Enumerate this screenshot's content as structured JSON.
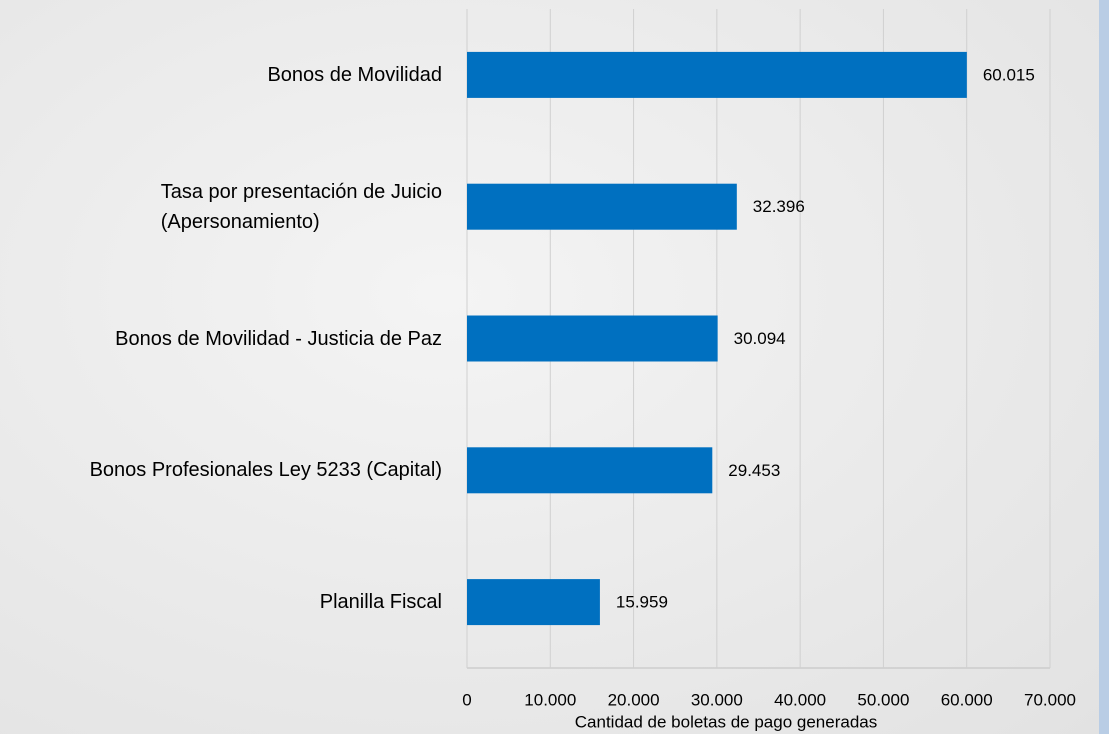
{
  "chart_data": {
    "type": "bar",
    "orientation": "horizontal",
    "x_label": "Cantidad de boletas de pago generadas",
    "categories": [
      "Bonos de Movilidad",
      "Tasa por presentación de Juicio\n(Apersonamiento)",
      "Bonos de Movilidad - Justicia de Paz",
      "Bonos Profesionales Ley 5233 (Capital)",
      "Planilla Fiscal"
    ],
    "values": [
      60015,
      32396,
      30094,
      29453,
      15959
    ],
    "value_labels": [
      "60.015",
      "32.396",
      "30.094",
      "29.453",
      "15.959"
    ],
    "color": "#0070c0",
    "xlim": [
      0,
      70000
    ],
    "xticks": [
      0,
      {
        "value": 10000,
        "label": "10.000"
      },
      {
        "value": 20000,
        "label": "20.000"
      },
      {
        "value": 30000,
        "label": "30.000"
      },
      {
        "value": 40000,
        "label": "40.000"
      },
      {
        "value": 50000,
        "label": "50.000"
      },
      {
        "value": 60000,
        "label": "60.000"
      },
      {
        "value": 70000,
        "label": "70.000"
      }
    ],
    "grid": true
  }
}
